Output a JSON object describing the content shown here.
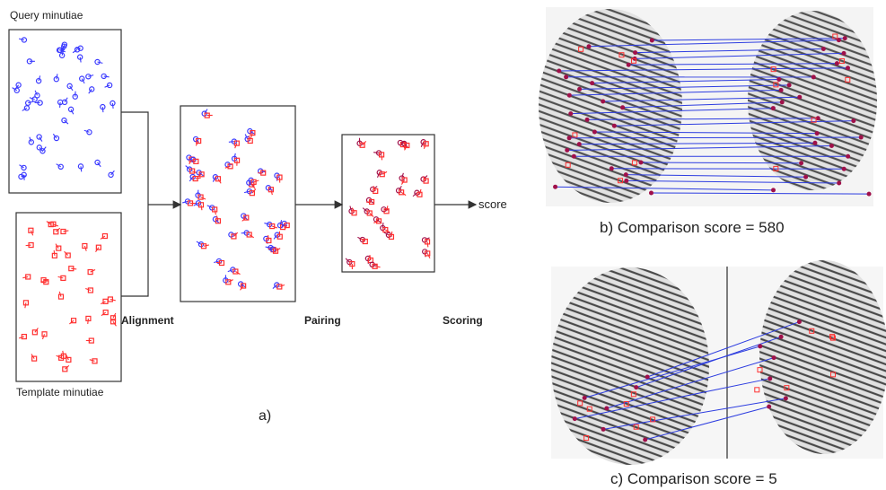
{
  "panel_a": {
    "query_label": "Query minutiae",
    "template_label": "Template minutiae",
    "output_label": "score",
    "stages": [
      "Alignment",
      "Pairing",
      "Scoring"
    ],
    "caption": "a)"
  },
  "panel_b": {
    "caption": "b) Comparison score = 580"
  },
  "panel_c": {
    "caption": "c) Comparison score = 5"
  },
  "colors": {
    "query_minutiae": "#3a3aff",
    "template_minutiae": "#ff3030",
    "match_line": "#2d3de0",
    "paired_point": "#a0104a"
  }
}
